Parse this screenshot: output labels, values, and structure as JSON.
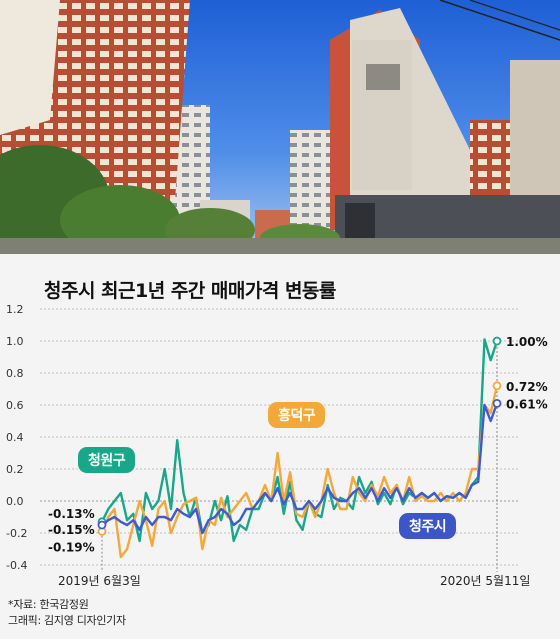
{
  "title": "청주시 최근1년 주간 매매가격 변동률",
  "footer": {
    "source": "*자료: 한국감정원",
    "credit": "그래픽: 김지영 디자인기자"
  },
  "series_labels": {
    "cheongwon": "청원구",
    "heungdeok": "흥덕구",
    "cheongju": "청주시"
  },
  "colors": {
    "cheongwon": "#1aa68a",
    "heungdeok": "#f3a93a",
    "cheongju": "#3f5bd1",
    "cheongwon_label": "#18a889",
    "heungdeok_label": "#f3a93a",
    "cheongju_label": "#3c56c8"
  },
  "chart_data": {
    "type": "line",
    "title": "청주시 최근1년 주간 매매가격 변동률",
    "xlabel": "",
    "ylabel": "",
    "x_start_label": "2019년 6월3일",
    "x_end_label": "2020년 5월11일",
    "ylim": [
      -0.4,
      1.2
    ],
    "yticks": [
      "-0.4",
      "-0.2",
      "0.0",
      "0.2",
      "0.4",
      "0.6",
      "0.8",
      "1.0",
      "1.2"
    ],
    "grid": "horizontal dotted",
    "series": [
      {
        "name": "청원구",
        "values": [
          -0.13,
          -0.05,
          0.0,
          0.05,
          -0.12,
          -0.08,
          -0.25,
          0.05,
          -0.05,
          0.0,
          0.2,
          -0.05,
          0.38,
          0.05,
          -0.1,
          0.02,
          -0.2,
          -0.15,
          0.0,
          -0.12,
          0.03,
          -0.25,
          -0.15,
          -0.18,
          -0.05,
          -0.05,
          0.05,
          0.0,
          0.15,
          -0.08,
          0.12,
          -0.12,
          -0.18,
          0.0,
          -0.08,
          -0.1,
          0.1,
          -0.05,
          0.02,
          0.0,
          -0.05,
          0.15,
          0.05,
          0.12,
          -0.02,
          0.05,
          -0.02,
          0.1,
          -0.02,
          0.05,
          0.02,
          0.05,
          0.02,
          0.05,
          0.0,
          0.03,
          0.02,
          0.05,
          0.02,
          0.1,
          0.15,
          1.01,
          0.88,
          1.0
        ]
      },
      {
        "name": "흥덕구",
        "values": [
          -0.19,
          -0.1,
          -0.05,
          -0.35,
          -0.3,
          -0.15,
          0.0,
          -0.12,
          -0.28,
          -0.05,
          0.0,
          -0.2,
          -0.1,
          -0.02,
          0.0,
          0.02,
          -0.3,
          -0.12,
          -0.15,
          0.02,
          -0.1,
          -0.05,
          0.0,
          0.05,
          -0.05,
          0.0,
          0.1,
          0.0,
          0.3,
          0.0,
          0.18,
          -0.08,
          -0.1,
          0.0,
          -0.1,
          0.0,
          0.2,
          0.05,
          -0.05,
          -0.05,
          0.15,
          0.05,
          0.0,
          0.1,
          0.03,
          0.15,
          0.05,
          0.1,
          0.0,
          0.15,
          0.0,
          0.03,
          0.0,
          0.0,
          0.05,
          0.0,
          0.05,
          0.0,
          0.05,
          0.2,
          0.2,
          0.6,
          0.55,
          0.72
        ]
      },
      {
        "name": "청주시",
        "values": [
          -0.15,
          -0.12,
          -0.1,
          -0.13,
          -0.15,
          -0.12,
          -0.18,
          -0.1,
          -0.15,
          -0.1,
          -0.1,
          -0.12,
          -0.05,
          -0.08,
          -0.1,
          -0.05,
          -0.2,
          -0.12,
          -0.1,
          -0.05,
          -0.08,
          -0.15,
          -0.12,
          -0.05,
          -0.05,
          0.0,
          0.05,
          0.0,
          0.08,
          -0.02,
          0.05,
          -0.05,
          -0.05,
          0.0,
          -0.05,
          0.0,
          0.08,
          0.02,
          0.0,
          0.0,
          0.05,
          0.08,
          0.02,
          0.08,
          0.0,
          0.08,
          0.02,
          0.08,
          0.0,
          0.08,
          0.02,
          0.05,
          0.02,
          0.05,
          0.0,
          0.03,
          0.02,
          0.05,
          0.02,
          0.1,
          0.12,
          0.6,
          0.5,
          0.61
        ]
      }
    ],
    "annotations": {
      "start": [
        "-0.13%",
        "-0.15%",
        "-0.19%"
      ],
      "end": [
        "1.00%",
        "0.72%",
        "0.61%"
      ]
    }
  }
}
